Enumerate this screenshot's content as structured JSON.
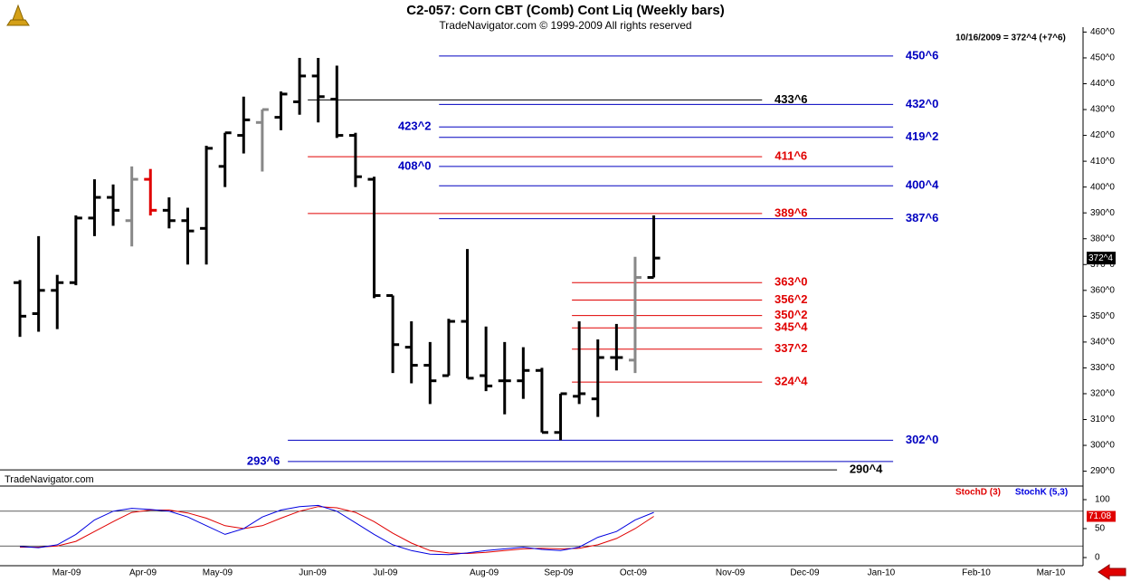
{
  "header": {
    "title": "C2-057:  Corn CBT (Comb) Cont Liq  (Weekly bars)",
    "subtitle": "TradeNavigator.com © 1999-2009 All rights reserved",
    "watermark": "TradeNavigator.com",
    "last_quote": "10/16/2009 = 372^4 (+7^6)"
  },
  "chart_data": [
    {
      "type": "ohlc",
      "x": [
        0,
        1,
        2,
        3,
        4,
        5,
        6,
        7,
        8,
        9,
        10,
        11,
        12,
        13,
        14,
        15,
        16,
        17,
        18,
        19,
        20,
        21,
        22,
        23,
        24,
        25,
        26,
        27,
        28,
        29,
        30,
        31,
        32,
        33,
        34
      ],
      "open": [
        363,
        351,
        360,
        363,
        388,
        396,
        387,
        403,
        391,
        387,
        384,
        408,
        420,
        425,
        427,
        433,
        443,
        434,
        420,
        403,
        358,
        338,
        331,
        327,
        348,
        327,
        325,
        325,
        329,
        305,
        319,
        318,
        334,
        333,
        365
      ],
      "high": [
        364,
        381,
        366,
        389,
        403,
        401,
        408,
        407,
        396,
        392,
        416,
        421,
        435,
        430,
        437,
        450,
        450,
        447,
        421,
        404,
        358,
        348,
        340,
        349,
        376,
        346,
        340,
        338,
        330,
        320,
        348,
        341,
        347,
        373,
        389
      ],
      "low": [
        342,
        344,
        345,
        362,
        381,
        385,
        377,
        389,
        384,
        370,
        370,
        400,
        413,
        406,
        422,
        428,
        425,
        419,
        400,
        357,
        328,
        324,
        316,
        327,
        326,
        321,
        312,
        318,
        305,
        302,
        316,
        311,
        329,
        328,
        365
      ],
      "close": [
        350,
        360,
        363,
        388,
        396,
        391,
        403,
        391,
        387,
        383,
        415,
        421,
        426,
        430,
        436,
        443,
        435,
        420,
        404,
        358,
        339,
        331,
        325,
        348,
        326,
        323,
        325,
        329,
        305,
        320,
        320,
        334,
        334,
        365,
        372.5
      ],
      "bar_colors": [
        "#000",
        "#000",
        "#000",
        "#000",
        "#000",
        "#000",
        "#888",
        "#e00000",
        "#000",
        "#000",
        "#000",
        "#000",
        "#000",
        "#888",
        "#000",
        "#000",
        "#000",
        "#000",
        "#000",
        "#000",
        "#000",
        "#000",
        "#000",
        "#000",
        "#000",
        "#000",
        "#000",
        "#000",
        "#000",
        "#000",
        "#000",
        "#000",
        "#000",
        "#888",
        "#000"
      ],
      "xlim": [
        -1.07,
        56.93
      ],
      "xticks": [
        {
          "value": 2.5,
          "label": "Mar-09"
        },
        {
          "value": 6.6,
          "label": "Apr-09"
        },
        {
          "value": 10.6,
          "label": "May-09"
        },
        {
          "value": 15.7,
          "label": "Jun-09"
        },
        {
          "value": 19.6,
          "label": "Jul-09"
        },
        {
          "value": 24.9,
          "label": "Aug-09"
        },
        {
          "value": 28.9,
          "label": "Sep-09"
        },
        {
          "value": 32.9,
          "label": "Oct-09"
        },
        {
          "value": 38.1,
          "label": "Nov-09"
        },
        {
          "value": 42.1,
          "label": "Dec-09"
        },
        {
          "value": 46.2,
          "label": "Jan-10"
        },
        {
          "value": 51.3,
          "label": "Feb-10"
        },
        {
          "value": 55.3,
          "label": "Mar-10"
        }
      ],
      "ylim": [
        287.4,
        461.9
      ],
      "yticks": [
        {
          "value": 290,
          "label": "290^0"
        },
        {
          "value": 300,
          "label": "300^0"
        },
        {
          "value": 310,
          "label": "310^0"
        },
        {
          "value": 320,
          "label": "320^0"
        },
        {
          "value": 330,
          "label": "330^0"
        },
        {
          "value": 340,
          "label": "340^0"
        },
        {
          "value": 350,
          "label": "350^0"
        },
        {
          "value": 360,
          "label": "360^0"
        },
        {
          "value": 370,
          "label": "370^0"
        },
        {
          "value": 380,
          "label": "380^0"
        },
        {
          "value": 390,
          "label": "390^0"
        },
        {
          "value": 400,
          "label": "400^0"
        },
        {
          "value": 410,
          "label": "410^0"
        },
        {
          "value": 420,
          "label": "420^0"
        },
        {
          "value": 430,
          "label": "430^0"
        },
        {
          "value": 440,
          "label": "440^0"
        },
        {
          "value": 450,
          "label": "450^0"
        },
        {
          "value": 460,
          "label": "460^0"
        }
      ],
      "last_value": 372.5,
      "last_label": "372^4",
      "levels": [
        {
          "value": 450.75,
          "label": "450^6",
          "color": "#0000c0",
          "x": [
            22.48,
            46.84
          ],
          "label_side": "right"
        },
        {
          "value": 433.75,
          "label": "433^6",
          "color": "#000000",
          "x": [
            15.44,
            39.81
          ],
          "label_side": "right"
        },
        {
          "value": 432,
          "label": "432^0",
          "color": "#0000c0",
          "x": [
            22.48,
            46.84
          ],
          "label_side": "right"
        },
        {
          "value": 423.25,
          "label": "423^2",
          "color": "#0000c0",
          "x": [
            22.48,
            46.84
          ],
          "label_side": "left"
        },
        {
          "value": 419.25,
          "label": "419^2",
          "color": "#0000c0",
          "x": [
            22.48,
            46.84
          ],
          "label_side": "right"
        },
        {
          "value": 411.75,
          "label": "411^6",
          "color": "#e00000",
          "x": [
            15.44,
            39.81
          ],
          "label_side": "right"
        },
        {
          "value": 408,
          "label": "408^0",
          "color": "#0000c0",
          "x": [
            22.48,
            46.84
          ],
          "label_side": "left"
        },
        {
          "value": 400.5,
          "label": "400^4",
          "color": "#0000c0",
          "x": [
            22.48,
            46.84
          ],
          "label_side": "right"
        },
        {
          "value": 389.75,
          "label": "389^6",
          "color": "#e00000",
          "x": [
            15.44,
            39.81
          ],
          "label_side": "right"
        },
        {
          "value": 387.75,
          "label": "387^6",
          "color": "#0000c0",
          "x": [
            22.48,
            46.84
          ],
          "label_side": "right"
        },
        {
          "value": 363,
          "label": "363^0",
          "color": "#e00000",
          "x": [
            29.61,
            39.81
          ],
          "label_side": "right"
        },
        {
          "value": 356.25,
          "label": "356^2",
          "color": "#e00000",
          "x": [
            29.61,
            39.81
          ],
          "label_side": "right"
        },
        {
          "value": 350.25,
          "label": "350^2",
          "color": "#e00000",
          "x": [
            29.61,
            39.81
          ],
          "label_side": "right"
        },
        {
          "value": 345.5,
          "label": "345^4",
          "color": "#e00000",
          "x": [
            29.61,
            39.81
          ],
          "label_side": "right"
        },
        {
          "value": 337.25,
          "label": "337^2",
          "color": "#e00000",
          "x": [
            29.61,
            39.81
          ],
          "label_side": "right"
        },
        {
          "value": 324.5,
          "label": "324^4",
          "color": "#e00000",
          "x": [
            29.61,
            39.81
          ],
          "label_side": "right"
        },
        {
          "value": 302,
          "label": "302^0",
          "color": "#0000c0",
          "x": [
            14.37,
            46.84
          ],
          "label_side": "right"
        },
        {
          "value": 293.75,
          "label": "293^6",
          "color": "#0000c0",
          "x": [
            14.37,
            46.84
          ],
          "label_side": "left"
        },
        {
          "value": 290.5,
          "label": "290^4",
          "color": "#000000",
          "x": [
            -1.07,
            43.83
          ],
          "label_side": "right"
        }
      ]
    },
    {
      "type": "line",
      "x": [
        0,
        1,
        2,
        3,
        4,
        5,
        6,
        7,
        8,
        9,
        10,
        11,
        12,
        13,
        14,
        15,
        16,
        17,
        18,
        19,
        20,
        21,
        22,
        23,
        24,
        25,
        26,
        27,
        28,
        29,
        30,
        31,
        32,
        33,
        34
      ],
      "series": [
        {
          "name": "StochD (3)",
          "color": "#e00000",
          "values": [
            18,
            18,
            20,
            28,
            45,
            62,
            78,
            82,
            82,
            77,
            68,
            55,
            50,
            55,
            68,
            80,
            88,
            86,
            78,
            62,
            42,
            25,
            12,
            8,
            7,
            9,
            12,
            15,
            16,
            15,
            16,
            22,
            33,
            50,
            71.08
          ]
        },
        {
          "name": "StochK (5,3)",
          "color": "#0000e0",
          "values": [
            19,
            17,
            22,
            40,
            65,
            80,
            85,
            83,
            80,
            70,
            55,
            40,
            50,
            70,
            82,
            88,
            90,
            80,
            60,
            40,
            22,
            12,
            6,
            5,
            8,
            12,
            15,
            18,
            14,
            12,
            18,
            35,
            45,
            65,
            78
          ]
        }
      ],
      "xlim": [
        -1.07,
        56.93
      ],
      "ylim": [
        -18.75,
        118.75
      ],
      "yticks": [
        0,
        50,
        100
      ],
      "hlines": [
        80,
        20
      ],
      "last_value": 71.08
    }
  ]
}
